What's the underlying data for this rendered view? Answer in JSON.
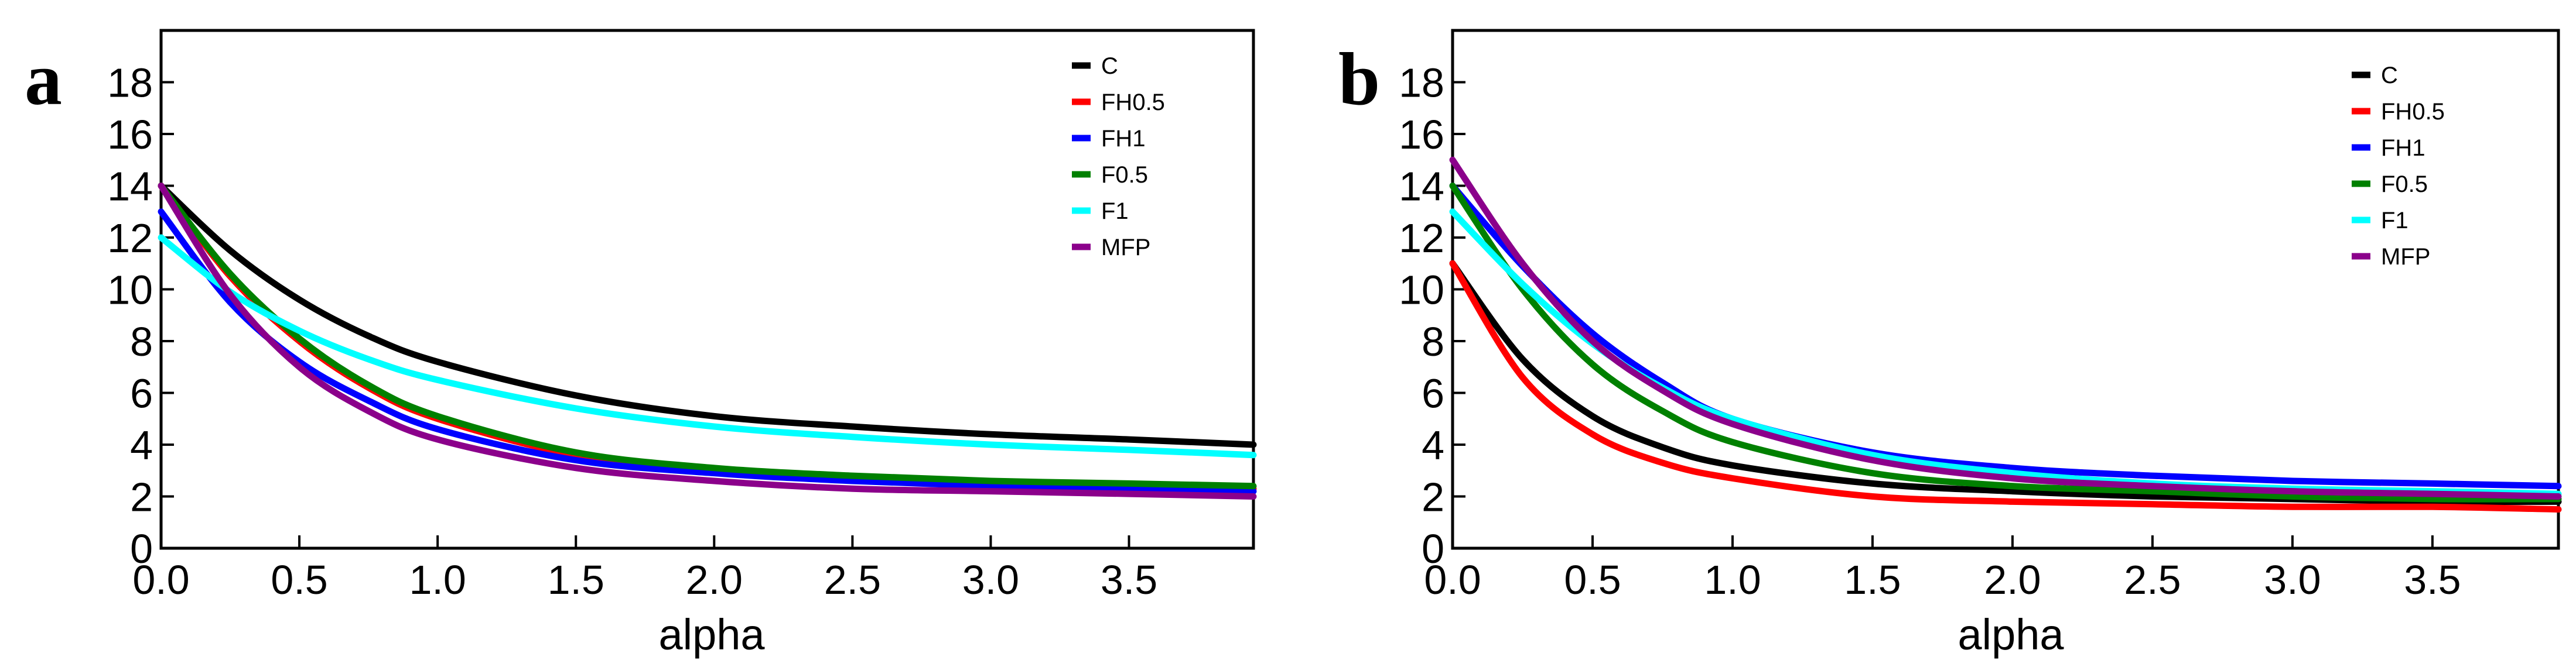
{
  "chart_data": [
    {
      "type": "line",
      "panel": "a",
      "xlabel": "alpha",
      "ylabel": "",
      "xlim": [
        0,
        3.95
      ],
      "ylim": [
        0,
        20
      ],
      "xticks": [
        "0.0",
        "0.5",
        "1.0",
        "1.5",
        "2.0",
        "2.5",
        "3.0",
        "3.5"
      ],
      "xtick_values": [
        0,
        0.5,
        1.0,
        1.5,
        2.0,
        2.5,
        3.0,
        3.5
      ],
      "yticks": [
        "0",
        "2",
        "4",
        "6",
        "8",
        "10",
        "12",
        "14",
        "16",
        "18"
      ],
      "ytick_values": [
        0,
        2,
        4,
        6,
        8,
        10,
        12,
        14,
        16,
        18
      ],
      "legend_position": "top-right",
      "x": [
        0,
        0.25,
        0.5,
        0.75,
        1.0,
        1.5,
        2.0,
        2.5,
        3.0,
        3.5,
        3.95
      ],
      "series": [
        {
          "name": "C",
          "color": "#000000",
          "values": [
            14.0,
            11.5,
            9.6,
            8.2,
            7.2,
            5.9,
            5.1,
            4.7,
            4.4,
            4.2,
            4.0
          ]
        },
        {
          "name": "FH0.5",
          "color": "#ff0000",
          "values": [
            14.0,
            10.5,
            8.0,
            6.2,
            5.0,
            3.6,
            3.0,
            2.7,
            2.5,
            2.4,
            2.3
          ]
        },
        {
          "name": "FH1",
          "color": "#0000ff",
          "values": [
            13.0,
            9.5,
            7.2,
            5.7,
            4.6,
            3.4,
            2.9,
            2.6,
            2.4,
            2.3,
            2.2
          ]
        },
        {
          "name": "F0.5",
          "color": "#008000",
          "values": [
            14.0,
            10.6,
            8.1,
            6.3,
            5.1,
            3.7,
            3.1,
            2.8,
            2.6,
            2.5,
            2.4
          ]
        },
        {
          "name": "F1",
          "color": "#00ffff",
          "values": [
            12.0,
            9.9,
            8.4,
            7.3,
            6.5,
            5.4,
            4.7,
            4.3,
            4.0,
            3.8,
            3.6
          ]
        },
        {
          "name": "MFP",
          "color": "#8b008b",
          "values": [
            14.0,
            9.8,
            7.0,
            5.3,
            4.2,
            3.1,
            2.6,
            2.3,
            2.2,
            2.1,
            2.0
          ]
        }
      ]
    },
    {
      "type": "line",
      "panel": "b",
      "xlabel": "alpha",
      "ylabel": "",
      "xlim": [
        0,
        3.95
      ],
      "ylim": [
        0,
        20
      ],
      "xticks": [
        "0.0",
        "0.5",
        "1.0",
        "1.5",
        "2.0",
        "2.5",
        "3.0",
        "3.5"
      ],
      "xtick_values": [
        0,
        0.5,
        1.0,
        1.5,
        2.0,
        2.5,
        3.0,
        3.5
      ],
      "yticks": [
        "0",
        "2",
        "4",
        "6",
        "8",
        "10",
        "12",
        "14",
        "16",
        "18"
      ],
      "ytick_values": [
        0,
        2,
        4,
        6,
        8,
        10,
        12,
        14,
        16,
        18
      ],
      "legend_position": "top-right",
      "x": [
        0,
        0.25,
        0.5,
        0.75,
        1.0,
        1.5,
        2.0,
        2.5,
        3.0,
        3.5,
        3.95
      ],
      "series": [
        {
          "name": "C",
          "color": "#000000",
          "values": [
            11.0,
            7.3,
            5.1,
            3.9,
            3.2,
            2.5,
            2.2,
            2.0,
            1.9,
            1.8,
            1.8
          ]
        },
        {
          "name": "FH0.5",
          "color": "#ff0000",
          "values": [
            11.0,
            6.6,
            4.4,
            3.3,
            2.7,
            2.0,
            1.8,
            1.7,
            1.6,
            1.6,
            1.5
          ]
        },
        {
          "name": "FH1",
          "color": "#0000ff",
          "values": [
            14.0,
            10.9,
            8.3,
            6.4,
            5.0,
            3.7,
            3.1,
            2.8,
            2.6,
            2.5,
            2.4
          ]
        },
        {
          "name": "F0.5",
          "color": "#008000",
          "values": [
            14.0,
            10.0,
            7.1,
            5.3,
            4.1,
            2.9,
            2.4,
            2.2,
            2.0,
            1.9,
            1.9
          ]
        },
        {
          "name": "F1",
          "color": "#00ffff",
          "values": [
            13.0,
            10.2,
            7.9,
            6.2,
            5.0,
            3.6,
            2.9,
            2.5,
            2.3,
            2.2,
            2.1
          ]
        },
        {
          "name": "MFP",
          "color": "#8b008b",
          "values": [
            15.0,
            11.0,
            8.0,
            6.1,
            4.8,
            3.4,
            2.7,
            2.4,
            2.2,
            2.1,
            2.0
          ]
        }
      ]
    }
  ]
}
